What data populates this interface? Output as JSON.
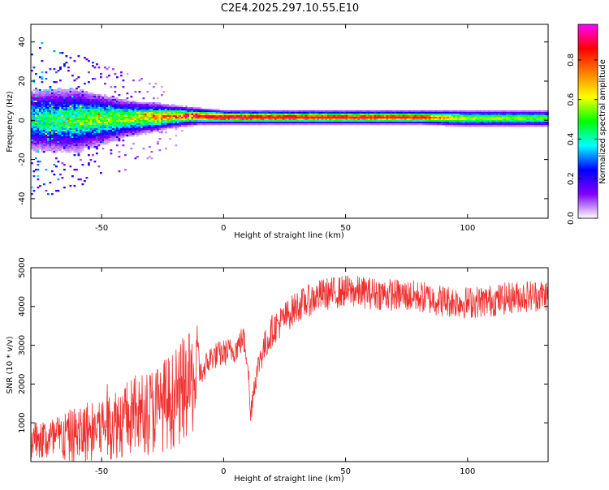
{
  "figure_title": "C2E4.2025.297.10.55.E10",
  "chart_data": [
    {
      "type": "heatmap",
      "title": "C2E4.2025.297.10.55.E10",
      "xlabel": "Height of straight line (km)",
      "ylabel": "Frequency (Hz)",
      "xlim": [
        -79,
        133
      ],
      "ylim": [
        -50,
        49
      ],
      "x_ticks": [
        -50,
        0,
        50,
        100
      ],
      "y_ticks": [
        -40,
        -20,
        0,
        20,
        40
      ],
      "colorbar": {
        "label": "Normalized spectral amplitude",
        "range": [
          0,
          0.98
        ],
        "ticks": [
          "0.0",
          "0.2",
          "0.4",
          "0.6",
          "0.8"
        ],
        "colors": [
          "#ffffff",
          "#7f00ff",
          "#0000ff",
          "#00ffff",
          "#00ff00",
          "#ffff00",
          "#ff7f00",
          "#ff0000",
          "#ff00ff"
        ]
      },
      "band_profile": {
        "x": [
          -79,
          -60,
          -40,
          -20,
          -10,
          0,
          20,
          50,
          80,
          100,
          133
        ],
        "center_hz": [
          0,
          0,
          1,
          2,
          2,
          1.5,
          1.5,
          1.5,
          1.5,
          1,
          1
        ],
        "halfwidth_hz": [
          12,
          12,
          7,
          4,
          3,
          2.5,
          2.5,
          2.5,
          2.5,
          3,
          3
        ],
        "peak_amplitude": [
          0.4,
          0.5,
          0.55,
          0.8,
          0.85,
          0.95,
          0.92,
          0.9,
          0.88,
          0.6,
          0.55
        ]
      }
    },
    {
      "type": "line",
      "xlabel": "Height of straight line (km)",
      "ylabel": "SNR (10 * v/v)",
      "xlim": [
        -79,
        133
      ],
      "ylim": [
        0,
        5000
      ],
      "x_ticks": [
        -50,
        0,
        50,
        100
      ],
      "y_ticks": [
        1000,
        2000,
        3000,
        4000,
        5000
      ],
      "series": [
        {
          "name": "SNR",
          "color": "#f03030",
          "x": [
            -79,
            -70,
            -60,
            -50,
            -40,
            -30,
            -20,
            -10,
            -5,
            0,
            5,
            8,
            10,
            11,
            12,
            15,
            20,
            30,
            40,
            50,
            60,
            70,
            80,
            90,
            100,
            110,
            120,
            133
          ],
          "y": [
            600,
            550,
            700,
            900,
            1100,
            1300,
            1600,
            2200,
            2700,
            2800,
            2900,
            3200,
            2600,
            1100,
            1800,
            2700,
            3400,
            4000,
            4300,
            4400,
            4350,
            4300,
            4250,
            4150,
            4100,
            4150,
            4250,
            4300
          ]
        }
      ]
    }
  ]
}
